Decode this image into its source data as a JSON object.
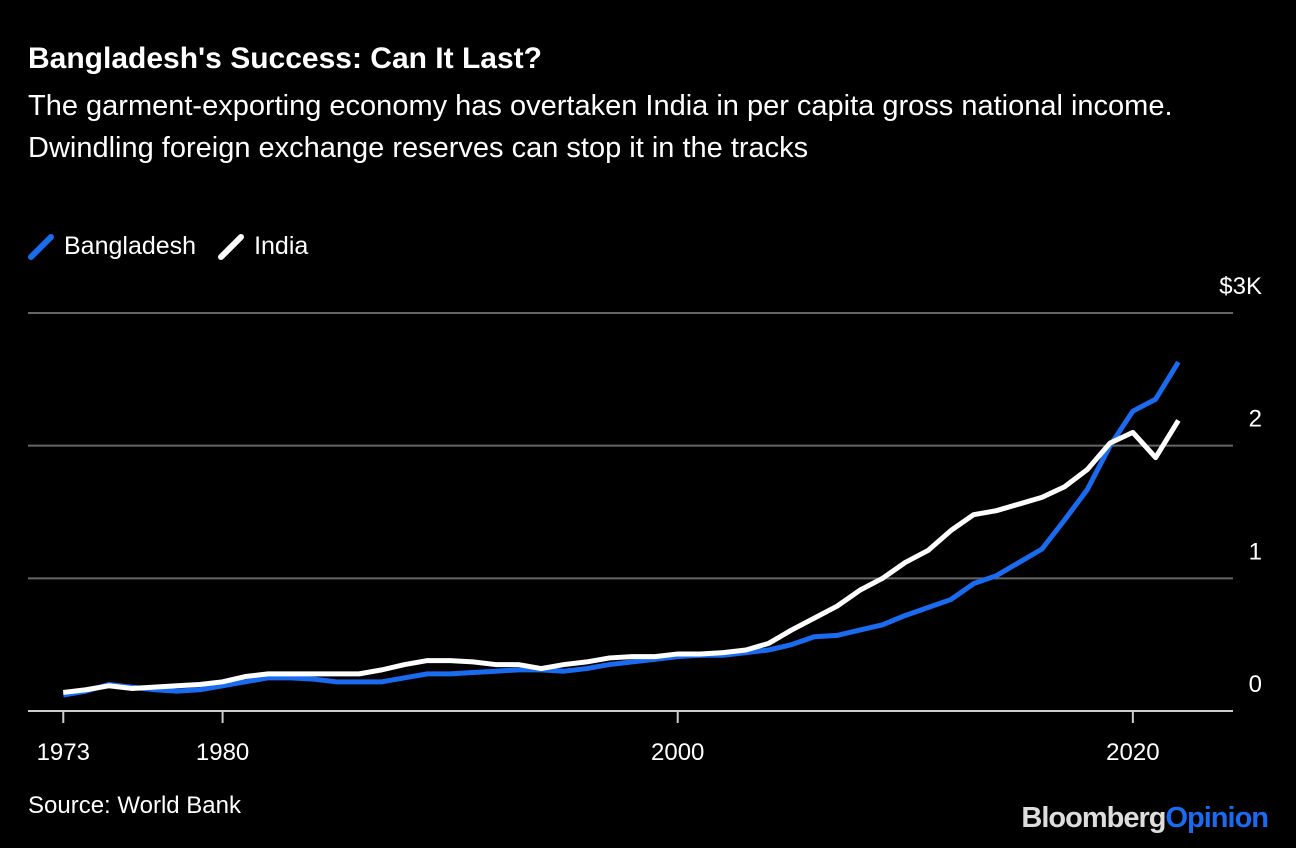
{
  "chart_data": {
    "type": "line",
    "title": "Bangladesh's Success: Can It Last?",
    "subtitle": "The garment-exporting economy has overtaken India in per capita gross national income. Dwindling foreign exchange reserves can stop it in the tracks",
    "source": "Source: World Bank",
    "brand": [
      "Bloomberg",
      "Opinion"
    ],
    "x": [
      1973,
      1974,
      1975,
      1976,
      1977,
      1978,
      1979,
      1980,
      1981,
      1982,
      1983,
      1984,
      1985,
      1986,
      1987,
      1988,
      1989,
      1990,
      1991,
      1992,
      1993,
      1994,
      1995,
      1996,
      1997,
      1998,
      1999,
      2000,
      2001,
      2002,
      2003,
      2004,
      2005,
      2006,
      2007,
      2008,
      2009,
      2010,
      2011,
      2012,
      2013,
      2014,
      2015,
      2016,
      2017,
      2018,
      2019,
      2020,
      2021,
      2022
    ],
    "series": [
      {
        "name": "Bangladesh",
        "color": "#1a6bf0",
        "values": [
          0.12,
          0.15,
          0.2,
          0.18,
          0.16,
          0.15,
          0.16,
          0.19,
          0.22,
          0.25,
          0.25,
          0.24,
          0.22,
          0.22,
          0.22,
          0.25,
          0.28,
          0.28,
          0.29,
          0.3,
          0.31,
          0.31,
          0.3,
          0.32,
          0.35,
          0.37,
          0.39,
          0.41,
          0.42,
          0.42,
          0.44,
          0.46,
          0.5,
          0.56,
          0.57,
          0.61,
          0.65,
          0.72,
          0.78,
          0.84,
          0.96,
          1.02,
          1.12,
          1.22,
          1.44,
          1.67,
          2.0,
          2.26,
          2.35,
          2.63
        ]
      },
      {
        "name": "India",
        "color": "#ffffff",
        "values": [
          0.14,
          0.16,
          0.19,
          0.17,
          0.18,
          0.19,
          0.2,
          0.22,
          0.26,
          0.28,
          0.28,
          0.28,
          0.28,
          0.28,
          0.31,
          0.35,
          0.38,
          0.38,
          0.37,
          0.35,
          0.35,
          0.32,
          0.35,
          0.37,
          0.4,
          0.41,
          0.41,
          0.43,
          0.43,
          0.44,
          0.46,
          0.51,
          0.61,
          0.7,
          0.79,
          0.91,
          1.0,
          1.12,
          1.21,
          1.36,
          1.48,
          1.51,
          1.56,
          1.61,
          1.69,
          1.82,
          2.02,
          2.1,
          1.91,
          2.19
        ]
      }
    ],
    "xlim": [
      1971.45,
      2024.4
    ],
    "xticks": [
      1973,
      1980,
      2000,
      2020
    ],
    "ylim": [
      0,
      3
    ],
    "yticks": [
      0,
      1,
      2,
      {
        "value": 3,
        "label": "$3K"
      }
    ],
    "grid": true
  }
}
